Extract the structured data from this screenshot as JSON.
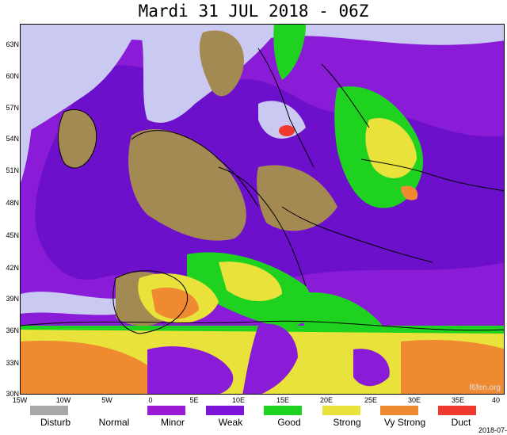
{
  "title": "Mardi 31 JUL 2018 - 06Z",
  "lat_labels": [
    "63N",
    "60N",
    "57N",
    "54N",
    "51N",
    "48N",
    "45N",
    "42N",
    "39N",
    "36N",
    "33N",
    "30N"
  ],
  "lon_labels": [
    "15W",
    "10W",
    "5W",
    "0",
    "5E",
    "10E",
    "15E",
    "20E",
    "25E",
    "30E",
    "35E",
    "40"
  ],
  "legend": [
    {
      "label": "Disturb",
      "color": "#a8a8a8"
    },
    {
      "label": "Normal",
      "color": "#ffffff"
    },
    {
      "label": "Minor",
      "color": "#9a1ad6"
    },
    {
      "label": "Weak",
      "color": "#7d16d8"
    },
    {
      "label": "Good",
      "color": "#1fd21f"
    },
    {
      "label": "Strong",
      "color": "#e8e23a"
    },
    {
      "label": "Vy Strong",
      "color": "#ef8a30"
    },
    {
      "label": "Duct",
      "color": "#f03a30"
    }
  ],
  "watermark": "f6fen.org",
  "timestamp": "2018-07-"
}
